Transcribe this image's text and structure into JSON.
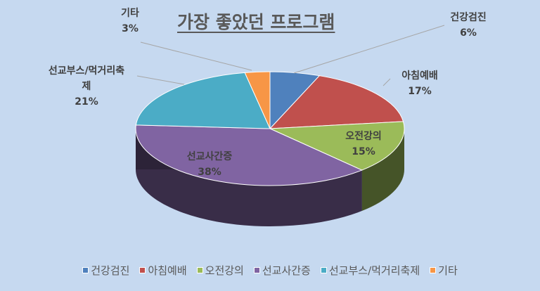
{
  "chart_data": {
    "type": "pie",
    "title": "가장 좋았던 프로그램",
    "categories": [
      "건강검진",
      "아침예배",
      "오전강의",
      "선교사간증",
      "선교부스/먹거리축제",
      "기타"
    ],
    "values": [
      6,
      17,
      15,
      38,
      21,
      3
    ],
    "value_labels": [
      "6%",
      "17%",
      "15%",
      "38%",
      "21%",
      "3%"
    ],
    "colors": [
      "#4f81bd",
      "#c0504d",
      "#9bbb59",
      "#8064a2",
      "#4bacc6",
      "#f79646"
    ],
    "legend_position": "bottom",
    "style": "3d"
  }
}
